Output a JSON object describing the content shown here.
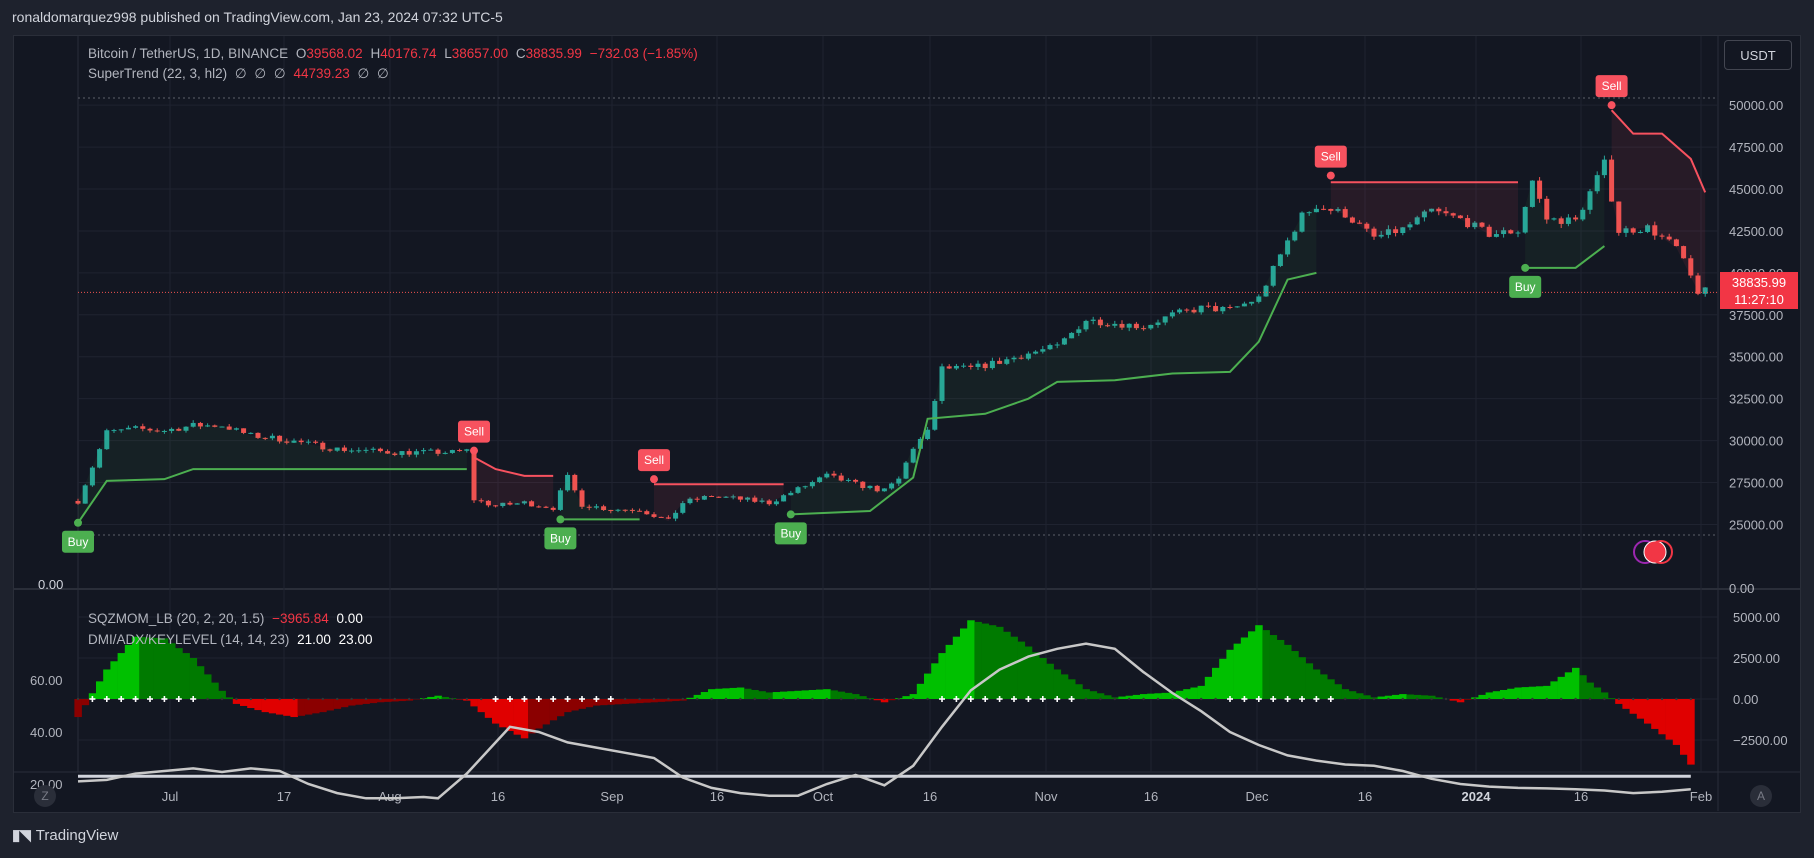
{
  "header": {
    "published": "ronaldomarquez998 published on TradingView.com, Jan 23, 2024 07:32 UTC-5"
  },
  "colors": {
    "up": "#26a69a",
    "down": "#ef5350",
    "st_up": "#4caf50",
    "st_down": "#f7525f",
    "bg": "#131722",
    "panel": "#1e222d"
  },
  "main_legend": {
    "symbol": "Bitcoin / TetherUS, 1D, BINANCE",
    "o_label": "O",
    "o_val": "39568.02",
    "h_label": "H",
    "h_val": "40176.74",
    "l_label": "L",
    "l_val": "38657.00",
    "c_label": "C",
    "c_val": "38835.99",
    "change": "−732.03 (−1.85%)",
    "supertrend_name": "SuperTrend (22, 3, hl2)",
    "supertrend_vals": [
      "∅",
      "∅",
      "∅",
      "44739.23",
      "∅",
      "∅"
    ]
  },
  "currency_button": "USDT",
  "last_price": {
    "price": "38835.99",
    "countdown": "11:27:10"
  },
  "sub_legend": {
    "sqz_name": "SQZMOM_LB (20, 2, 20, 1.5)",
    "sqz_val1": "−3965.84",
    "sqz_val2": "0.00",
    "dmi_name": "DMI/ADX/KEYLEVEL (14, 14, 23)",
    "dmi_val1": "21.00",
    "dmi_val2": "23.00"
  },
  "buttons": {
    "z": "Z",
    "a": "A"
  },
  "footer": {
    "logo_text": "TradingView"
  },
  "chart_data": [
    {
      "type": "candlestick",
      "title": "Bitcoin / TetherUS, 1D, BINANCE",
      "x_ticks": [
        "Jul",
        "17",
        "Aug",
        "16",
        "Sep",
        "16",
        "Oct",
        "16",
        "Nov",
        "16",
        "Dec",
        "16",
        "2024",
        "16",
        "Feb"
      ],
      "y_ticks": [
        "50000.00",
        "47500.00",
        "45000.00",
        "42500.00",
        "40000.00",
        "37500.00",
        "35000.00",
        "32500.00",
        "30000.00",
        "27500.00",
        "25000.00"
      ],
      "ylim": [
        23000,
        51500
      ],
      "left_axis_label": "0.00",
      "right_axis_label": "0.00",
      "price_path": [
        [
          0,
          26400
        ],
        [
          4,
          30500
        ],
        [
          8,
          30700
        ],
        [
          12,
          30600
        ],
        [
          16,
          30900
        ],
        [
          20,
          30900
        ],
        [
          24,
          30300
        ],
        [
          28,
          30100
        ],
        [
          32,
          29800
        ],
        [
          36,
          29500
        ],
        [
          40,
          29400
        ],
        [
          44,
          29300
        ],
        [
          48,
          29300
        ],
        [
          52,
          29300
        ],
        [
          54,
          29400
        ],
        [
          55,
          26500
        ],
        [
          58,
          26100
        ],
        [
          62,
          26300
        ],
        [
          66,
          26000
        ],
        [
          68,
          27800
        ],
        [
          70,
          26200
        ],
        [
          74,
          25900
        ],
        [
          78,
          25900
        ],
        [
          82,
          25200
        ],
        [
          84,
          26300
        ],
        [
          88,
          26700
        ],
        [
          92,
          26500
        ],
        [
          96,
          26300
        ],
        [
          100,
          27100
        ],
        [
          104,
          27900
        ],
        [
          108,
          27400
        ],
        [
          112,
          27000
        ],
        [
          114,
          27700
        ],
        [
          116,
          29600
        ],
        [
          118,
          30500
        ],
        [
          120,
          34300
        ],
        [
          124,
          34300
        ],
        [
          128,
          34700
        ],
        [
          132,
          35200
        ],
        [
          136,
          35600
        ],
        [
          140,
          37200
        ],
        [
          144,
          37000
        ],
        [
          148,
          36800
        ],
        [
          152,
          37500
        ],
        [
          156,
          37900
        ],
        [
          160,
          37800
        ],
        [
          164,
          38500
        ],
        [
          168,
          41900
        ],
        [
          170,
          43400
        ],
        [
          172,
          44000
        ],
        [
          176,
          43500
        ],
        [
          180,
          42100
        ],
        [
          184,
          42600
        ],
        [
          188,
          43700
        ],
        [
          192,
          43200
        ],
        [
          196,
          42300
        ],
        [
          200,
          42500
        ],
        [
          202,
          45500
        ],
        [
          204,
          43200
        ],
        [
          208,
          43100
        ],
        [
          212,
          46500
        ],
        [
          214,
          42500
        ],
        [
          218,
          42700
        ],
        [
          222,
          41500
        ],
        [
          225,
          38900
        ]
      ],
      "supertrend": [
        {
          "trend": "up",
          "values": [
            [
              0,
              25100
            ],
            [
              4,
              27600
            ],
            [
              12,
              27700
            ],
            [
              16,
              28300
            ],
            [
              54,
              28300
            ]
          ]
        },
        {
          "trend": "down",
          "values": [
            [
              55,
              29000
            ],
            [
              58,
              28300
            ],
            [
              62,
              27900
            ],
            [
              66,
              27900
            ]
          ]
        },
        {
          "trend": "up",
          "values": [
            [
              67,
              25300
            ],
            [
              78,
              25300
            ]
          ]
        },
        {
          "trend": "down",
          "values": [
            [
              80,
              27400
            ],
            [
              98,
              27400
            ]
          ]
        },
        {
          "trend": "up",
          "values": [
            [
              99,
              25600
            ],
            [
              110,
              25800
            ],
            [
              116,
              27800
            ],
            [
              118,
              31300
            ],
            [
              126,
              31600
            ],
            [
              132,
              32500
            ],
            [
              136,
              33500
            ],
            [
              144,
              33600
            ],
            [
              152,
              34000
            ],
            [
              160,
              34100
            ],
            [
              164,
              35900
            ],
            [
              168,
              39600
            ],
            [
              172,
              40000
            ]
          ]
        },
        {
          "trend": "down",
          "values": [
            [
              174,
              45400
            ],
            [
              200,
              45400
            ]
          ]
        },
        {
          "trend": "up",
          "values": [
            [
              201,
              40300
            ],
            [
              208,
              40300
            ],
            [
              212,
              41600
            ]
          ]
        },
        {
          "trend": "down",
          "values": [
            [
              213,
              49700
            ],
            [
              216,
              48300
            ],
            [
              220,
              48300
            ],
            [
              224,
              46800
            ],
            [
              226,
              44800
            ]
          ]
        }
      ],
      "signals": [
        {
          "label": "Buy",
          "x": 0,
          "price": 25100
        },
        {
          "label": "Sell",
          "x": 55,
          "price": 29400
        },
        {
          "label": "Buy",
          "x": 67,
          "price": 25300
        },
        {
          "label": "Sell",
          "x": 80,
          "price": 27700
        },
        {
          "label": "Buy",
          "x": 99,
          "price": 25600
        },
        {
          "label": "Sell",
          "x": 174,
          "price": 45800
        },
        {
          "label": "Buy",
          "x": 201,
          "price": 40300
        },
        {
          "label": "Sell",
          "x": 213,
          "price": 50000
        }
      ]
    },
    {
      "type": "area",
      "title": "SQZMOM_LB (20, 2, 20, 1.5) / DMI/ADX/KEYLEVEL (14, 14, 23)",
      "left_ticks": [
        "60.00",
        "40.00",
        "20.00"
      ],
      "right_ticks": [
        "5000.00",
        "2500.00",
        "0.00",
        "−2500.00"
      ],
      "momentum": [
        [
          0,
          -1100
        ],
        [
          4,
          1800
        ],
        [
          8,
          3800
        ],
        [
          12,
          3700
        ],
        [
          16,
          2500
        ],
        [
          20,
          500
        ],
        [
          22,
          -300
        ],
        [
          26,
          -800
        ],
        [
          30,
          -1100
        ],
        [
          34,
          -800
        ],
        [
          38,
          -400
        ],
        [
          42,
          -200
        ],
        [
          46,
          -100
        ],
        [
          50,
          200
        ],
        [
          54,
          -100
        ],
        [
          58,
          -1500
        ],
        [
          62,
          -2400
        ],
        [
          64,
          -1800
        ],
        [
          68,
          -800
        ],
        [
          72,
          -400
        ],
        [
          76,
          -300
        ],
        [
          80,
          -200
        ],
        [
          84,
          -100
        ],
        [
          88,
          600
        ],
        [
          92,
          700
        ],
        [
          96,
          400
        ],
        [
          100,
          500
        ],
        [
          104,
          600
        ],
        [
          108,
          300
        ],
        [
          112,
          -200
        ],
        [
          116,
          300
        ],
        [
          120,
          2800
        ],
        [
          124,
          4800
        ],
        [
          128,
          4400
        ],
        [
          132,
          3200
        ],
        [
          136,
          1800
        ],
        [
          140,
          600
        ],
        [
          144,
          100
        ],
        [
          148,
          300
        ],
        [
          152,
          400
        ],
        [
          156,
          800
        ],
        [
          160,
          3000
        ],
        [
          164,
          4500
        ],
        [
          168,
          3300
        ],
        [
          172,
          1800
        ],
        [
          176,
          600
        ],
        [
          180,
          100
        ],
        [
          184,
          300
        ],
        [
          188,
          200
        ],
        [
          192,
          -200
        ],
        [
          196,
          400
        ],
        [
          200,
          700
        ],
        [
          204,
          800
        ],
        [
          208,
          1900
        ],
        [
          210,
          1000
        ],
        [
          212,
          400
        ],
        [
          214,
          -300
        ],
        [
          218,
          -1500
        ],
        [
          222,
          -2800
        ],
        [
          224,
          -4000
        ]
      ],
      "adx": [
        [
          0,
          21
        ],
        [
          4,
          21.6
        ],
        [
          8,
          24
        ],
        [
          12,
          25
        ],
        [
          16,
          26
        ],
        [
          20,
          24.6
        ],
        [
          24,
          26
        ],
        [
          28,
          25
        ],
        [
          32,
          20
        ],
        [
          36,
          16.5
        ],
        [
          40,
          14.5
        ],
        [
          44,
          14.5
        ],
        [
          48,
          15
        ],
        [
          50,
          14.5
        ],
        [
          54,
          24
        ],
        [
          58,
          36
        ],
        [
          60,
          42
        ],
        [
          64,
          40
        ],
        [
          68,
          36
        ],
        [
          72,
          34
        ],
        [
          76,
          32
        ],
        [
          80,
          30
        ],
        [
          84,
          22.5
        ],
        [
          88,
          18.5
        ],
        [
          92,
          16.5
        ],
        [
          96,
          15.5
        ],
        [
          100,
          15.5
        ],
        [
          104,
          20
        ],
        [
          108,
          23.5
        ],
        [
          112,
          19.5
        ],
        [
          116,
          27
        ],
        [
          120,
          42
        ],
        [
          124,
          56
        ],
        [
          128,
          64
        ],
        [
          132,
          69
        ],
        [
          136,
          72
        ],
        [
          140,
          74
        ],
        [
          144,
          72
        ],
        [
          148,
          63
        ],
        [
          152,
          55
        ],
        [
          156,
          48
        ],
        [
          160,
          40
        ],
        [
          164,
          35
        ],
        [
          168,
          31
        ],
        [
          172,
          29
        ],
        [
          176,
          27.5
        ],
        [
          180,
          27
        ],
        [
          184,
          25
        ],
        [
          188,
          22
        ],
        [
          192,
          20
        ],
        [
          196,
          19
        ],
        [
          200,
          18.5
        ],
        [
          204,
          18.3
        ],
        [
          208,
          18
        ],
        [
          212,
          17.5
        ],
        [
          216,
          16.5
        ],
        [
          220,
          17
        ],
        [
          224,
          18
        ]
      ],
      "keylevel": 23,
      "squeeze_on_ranges": [
        [
          2,
          17
        ],
        [
          58,
          74
        ],
        [
          120,
          139
        ],
        [
          160,
          174
        ]
      ]
    }
  ]
}
